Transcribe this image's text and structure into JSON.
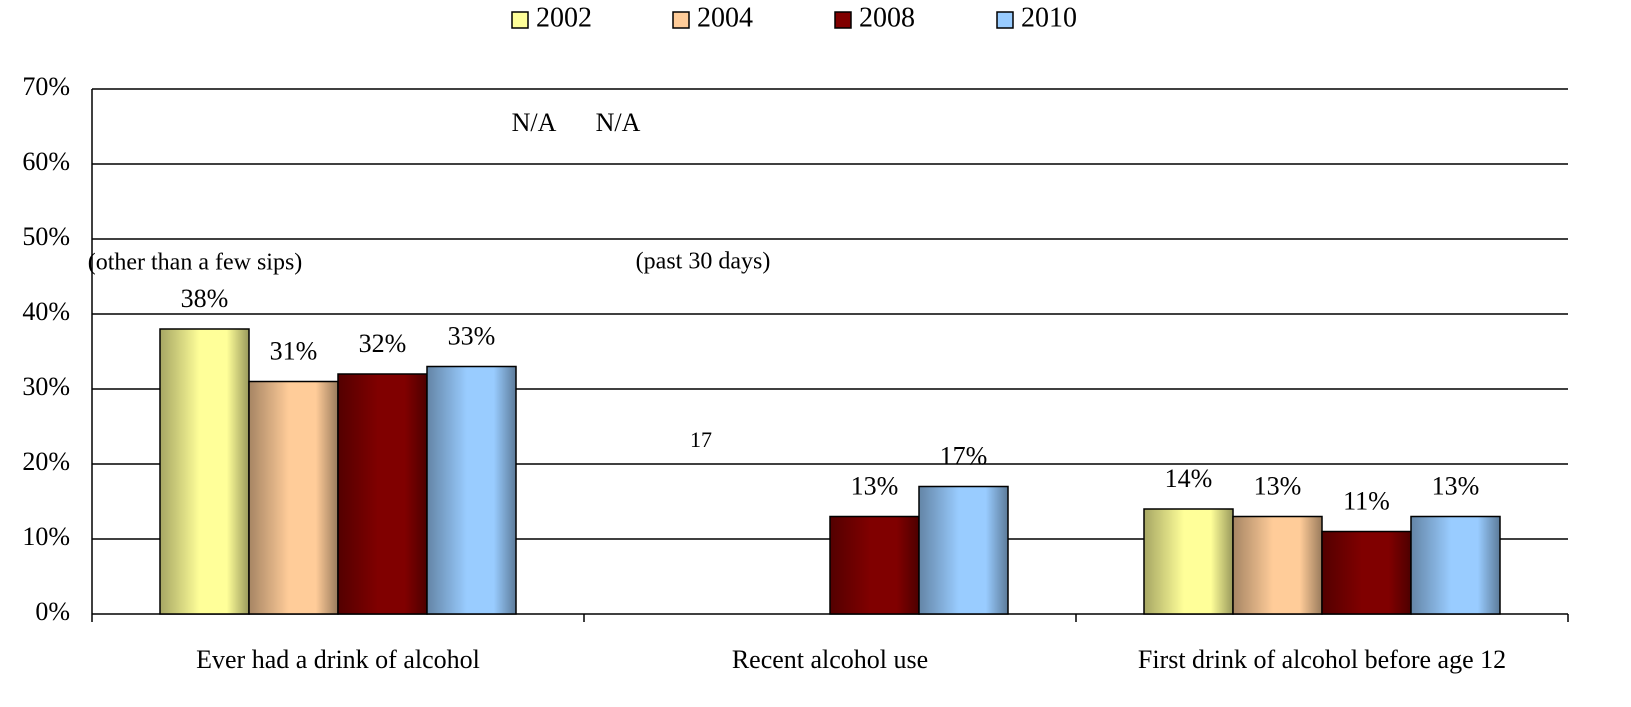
{
  "chart_data": {
    "type": "bar",
    "categories": [
      "Ever had a drink of alcohol",
      "Recent alcohol use",
      "First drink of alcohol before age 12"
    ],
    "series": [
      {
        "name": "2002",
        "color": "#ffff99",
        "values": [
          38,
          null,
          14
        ],
        "value_labels": [
          "38%",
          null,
          "14%"
        ]
      },
      {
        "name": "2004",
        "color": "#ffcc99",
        "values": [
          31,
          null,
          13
        ],
        "value_labels": [
          "31%",
          null,
          "13%"
        ]
      },
      {
        "name": "2008",
        "color": "#800000",
        "values": [
          32,
          13,
          11
        ],
        "value_labels": [
          "32%",
          "13%",
          "11%"
        ]
      },
      {
        "name": "2010",
        "color": "#99ccff",
        "values": [
          33,
          17,
          13
        ],
        "value_labels": [
          "33%",
          "17%",
          "13%"
        ]
      }
    ],
    "annotations": [
      "N/A",
      "N/A",
      "17",
      "(other than a few sips)",
      "(past 30 days)"
    ],
    "ylim": [
      0,
      70
    ],
    "yticks": [
      {
        "value": 0,
        "label": "0%"
      },
      {
        "value": 10,
        "label": "10%"
      },
      {
        "value": 20,
        "label": "20%"
      },
      {
        "value": 30,
        "label": "30%"
      },
      {
        "value": 40,
        "label": "40%"
      },
      {
        "value": 50,
        "label": "50%"
      },
      {
        "value": 60,
        "label": "60%"
      },
      {
        "value": 70,
        "label": "70%"
      }
    ],
    "grid": true,
    "legend": "top"
  }
}
